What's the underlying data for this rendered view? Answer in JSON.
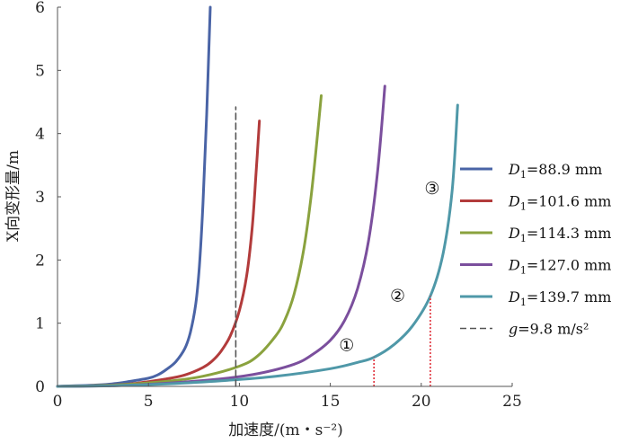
{
  "chart_data": {
    "type": "line",
    "title": "",
    "xlabel": "加速度/(m・s⁻²)",
    "ylabel": "X向变形量/m",
    "xlim": [
      0,
      25
    ],
    "ylim": [
      0,
      6
    ],
    "x_ticks": [
      "0",
      "5",
      "10",
      "15",
      "20",
      "25"
    ],
    "y_ticks": [
      "0",
      "1",
      "2",
      "3",
      "4",
      "5",
      "6"
    ],
    "grid": false,
    "legend_position": "right",
    "series": [
      {
        "name_var": "D",
        "name_sub": "1",
        "name_value": "=88.9 mm",
        "color": "#4a64a6",
        "x": [
          0,
          1,
          2,
          3,
          4,
          5,
          5.5,
          6,
          6.5,
          7,
          7.3,
          7.6,
          7.8,
          8.0,
          8.2,
          8.4
        ],
        "y": [
          0,
          0.01,
          0.02,
          0.04,
          0.08,
          0.13,
          0.18,
          0.27,
          0.39,
          0.6,
          0.85,
          1.3,
          1.9,
          2.9,
          4.3,
          6.0
        ]
      },
      {
        "name_var": "D",
        "name_sub": "1",
        "name_value": "=101.6 mm",
        "color": "#b23b3b",
        "x": [
          0,
          2,
          4,
          6,
          7,
          8,
          8.5,
          9,
          9.5,
          10,
          10.4,
          10.7,
          10.9,
          11.1
        ],
        "y": [
          0,
          0.01,
          0.04,
          0.12,
          0.18,
          0.3,
          0.4,
          0.56,
          0.8,
          1.2,
          1.75,
          2.5,
          3.3,
          4.2
        ]
      },
      {
        "name_var": "D",
        "name_sub": "1",
        "name_value": "=114.3 mm",
        "color": "#8aa23e",
        "x": [
          0,
          3,
          6,
          8,
          10,
          11,
          12,
          12.5,
          13,
          13.5,
          13.9,
          14.2,
          14.5
        ],
        "y": [
          0,
          0.02,
          0.08,
          0.16,
          0.32,
          0.48,
          0.8,
          1.05,
          1.45,
          2.1,
          2.9,
          3.7,
          4.6
        ]
      },
      {
        "name_var": "D",
        "name_sub": "1",
        "name_value": "=127.0 mm",
        "color": "#7b4f9d",
        "x": [
          0,
          3,
          6,
          9,
          11,
          13,
          14,
          15,
          15.8,
          16.5,
          17.1,
          17.6,
          18.0
        ],
        "y": [
          0,
          0.01,
          0.05,
          0.12,
          0.2,
          0.35,
          0.5,
          0.73,
          1.05,
          1.55,
          2.3,
          3.4,
          4.75
        ]
      },
      {
        "name_var": "D",
        "name_sub": "1",
        "name_value": "=139.7 mm",
        "color": "#4f98a8",
        "x": [
          0,
          3,
          6,
          9,
          12,
          15,
          16.5,
          17.4,
          18.5,
          19.5,
          20.5,
          21.2,
          21.7,
          22.0
        ],
        "y": [
          0,
          0.01,
          0.04,
          0.09,
          0.16,
          0.28,
          0.38,
          0.46,
          0.66,
          0.95,
          1.43,
          2.1,
          3.1,
          4.45
        ]
      },
      {
        "name_var": "g",
        "name_sub": "",
        "name_value": "=9.8 m/s²",
        "color": "#555555",
        "dashed": true,
        "x": [
          9.8,
          9.8
        ],
        "y": [
          0,
          4.42
        ]
      }
    ],
    "markers": [
      {
        "x": 17.4,
        "y": 0.46,
        "color": "#e0303a"
      },
      {
        "x": 20.5,
        "y": 1.43,
        "color": "#e0303a"
      }
    ],
    "annotations": [
      {
        "text": "①",
        "x": 15.9,
        "y": 0.65
      },
      {
        "text": "②",
        "x": 18.7,
        "y": 1.43
      },
      {
        "text": "③",
        "x": 20.6,
        "y": 3.13
      }
    ]
  }
}
